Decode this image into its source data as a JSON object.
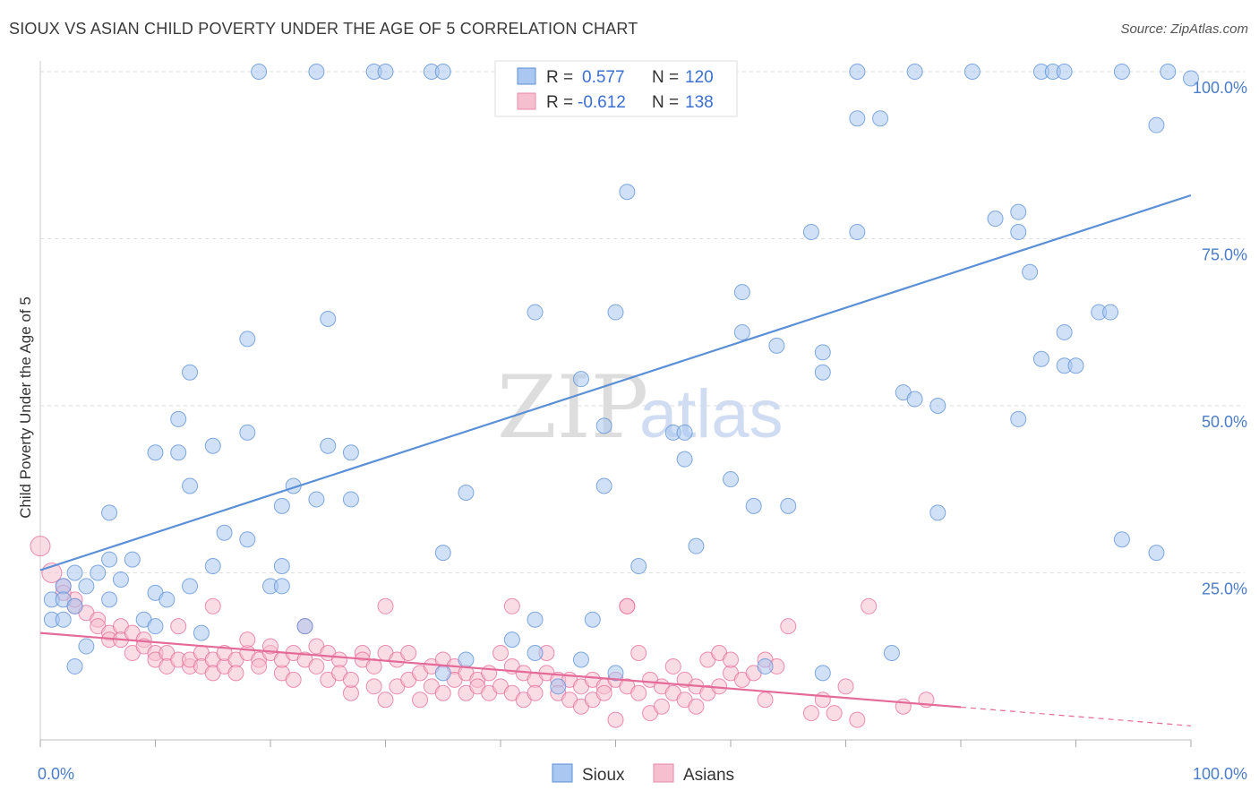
{
  "title": "SIOUX VS ASIAN CHILD POVERTY UNDER THE AGE OF 5 CORRELATION CHART",
  "source": "Source: ZipAtlas.com",
  "watermark": {
    "zip": "ZIP",
    "atlas": "atlas"
  },
  "legend": {
    "r_label": "R =",
    "n_label": "N =",
    "entries": [
      {
        "r": "0.577",
        "n": "120",
        "fill": "#a9c7f0",
        "stroke": "#5b8fd6"
      },
      {
        "r": "-0.612",
        "n": "138",
        "fill": "#f6bfd0",
        "stroke": "#e68aa8"
      }
    ]
  },
  "bottom_legend": [
    "Sioux",
    "Asians"
  ],
  "chart_data": {
    "type": "scatter",
    "xlabel": "",
    "ylabel": "Child Poverty Under the Age of 5",
    "xlim": [
      0,
      100
    ],
    "ylim": [
      0,
      100
    ],
    "x_tick_labels": [
      "0.0%",
      "100.0%"
    ],
    "y_ticks": [
      25,
      50,
      75,
      100
    ],
    "y_tick_labels": [
      "25.0%",
      "50.0%",
      "75.0%",
      "100.0%"
    ],
    "series": [
      {
        "name": "Sioux",
        "color": "#5b8fd6",
        "fill": "#a9c7f0",
        "trend": {
          "x": [
            0,
            100
          ],
          "y": [
            25.4,
            81.5
          ]
        },
        "points": [
          [
            19,
            100
          ],
          [
            24,
            100
          ],
          [
            29,
            100
          ],
          [
            30,
            100
          ],
          [
            34,
            100
          ],
          [
            35,
            100
          ],
          [
            71,
            100
          ],
          [
            76,
            100
          ],
          [
            81,
            100
          ],
          [
            87,
            100
          ],
          [
            88,
            100
          ],
          [
            89,
            100
          ],
          [
            94,
            100
          ],
          [
            98,
            100
          ],
          [
            100,
            99
          ],
          [
            71,
            93
          ],
          [
            73,
            93
          ],
          [
            97,
            92
          ],
          [
            51,
            82
          ],
          [
            83,
            78
          ],
          [
            85,
            79
          ],
          [
            67,
            76
          ],
          [
            71,
            76
          ],
          [
            85,
            76
          ],
          [
            86,
            70
          ],
          [
            61,
            67
          ],
          [
            25,
            63
          ],
          [
            43,
            64
          ],
          [
            50,
            64
          ],
          [
            92,
            64
          ],
          [
            93,
            64
          ],
          [
            18,
            60
          ],
          [
            61,
            61
          ],
          [
            64,
            59
          ],
          [
            68,
            58
          ],
          [
            89,
            61
          ],
          [
            87,
            57
          ],
          [
            89,
            56
          ],
          [
            90,
            56
          ],
          [
            13,
            55
          ],
          [
            47,
            54
          ],
          [
            68,
            55
          ],
          [
            75,
            52
          ],
          [
            76,
            51
          ],
          [
            78,
            50
          ],
          [
            85,
            48
          ],
          [
            12,
            48
          ],
          [
            18,
            46
          ],
          [
            49,
            47
          ],
          [
            55,
            46
          ],
          [
            56,
            46
          ],
          [
            15,
            44
          ],
          [
            10,
            43
          ],
          [
            12,
            43
          ],
          [
            25,
            44
          ],
          [
            27,
            43
          ],
          [
            56,
            42
          ],
          [
            13,
            38
          ],
          [
            22,
            38
          ],
          [
            37,
            37
          ],
          [
            49,
            38
          ],
          [
            60,
            39
          ],
          [
            6,
            34
          ],
          [
            21,
            35
          ],
          [
            24,
            36
          ],
          [
            27,
            36
          ],
          [
            62,
            35
          ],
          [
            65,
            35
          ],
          [
            78,
            34
          ],
          [
            16,
            31
          ],
          [
            18,
            30
          ],
          [
            35,
            28
          ],
          [
            57,
            29
          ],
          [
            94,
            30
          ],
          [
            97,
            28
          ],
          [
            6,
            27
          ],
          [
            8,
            27
          ],
          [
            3,
            25
          ],
          [
            5,
            25
          ],
          [
            15,
            26
          ],
          [
            21,
            26
          ],
          [
            52,
            26
          ],
          [
            20,
            23
          ],
          [
            21,
            23
          ],
          [
            2,
            23
          ],
          [
            4,
            23
          ],
          [
            7,
            24
          ],
          [
            10,
            22
          ],
          [
            13,
            23
          ],
          [
            11,
            21
          ],
          [
            1,
            21
          ],
          [
            2,
            21
          ],
          [
            6,
            21
          ],
          [
            3,
            20
          ],
          [
            1,
            18
          ],
          [
            2,
            18
          ],
          [
            9,
            18
          ],
          [
            10,
            17
          ],
          [
            14,
            16
          ],
          [
            23,
            17
          ],
          [
            41,
            15
          ],
          [
            43,
            18
          ],
          [
            48,
            18
          ],
          [
            4,
            14
          ],
          [
            43,
            13
          ],
          [
            50,
            10
          ],
          [
            35,
            10
          ],
          [
            3,
            11
          ],
          [
            47,
            12
          ],
          [
            37,
            12
          ],
          [
            45,
            8
          ],
          [
            63,
            11
          ],
          [
            74,
            13
          ],
          [
            68,
            10
          ]
        ]
      },
      {
        "name": "Asians",
        "color": "#e46b98",
        "fill": "#f6bfd0",
        "trend": {
          "x": [
            0,
            80
          ],
          "y": [
            16.0,
            4.9
          ]
        },
        "trend_dashed": {
          "x": [
            80,
            100
          ],
          "y": [
            4.9,
            2.1
          ]
        },
        "points": [
          [
            0,
            29
          ],
          [
            1,
            25
          ],
          [
            2,
            23
          ],
          [
            3,
            20
          ],
          [
            3,
            21
          ],
          [
            4,
            19
          ],
          [
            5,
            18
          ],
          [
            5,
            17
          ],
          [
            6,
            16
          ],
          [
            6,
            15
          ],
          [
            7,
            17
          ],
          [
            7,
            15
          ],
          [
            8,
            16
          ],
          [
            8,
            13
          ],
          [
            9,
            15
          ],
          [
            9,
            14
          ],
          [
            10,
            13
          ],
          [
            10,
            12
          ],
          [
            11,
            13
          ],
          [
            11,
            11
          ],
          [
            12,
            12
          ],
          [
            12,
            17
          ],
          [
            13,
            11
          ],
          [
            13,
            12
          ],
          [
            14,
            13
          ],
          [
            14,
            11
          ],
          [
            15,
            12
          ],
          [
            15,
            10
          ],
          [
            16,
            11
          ],
          [
            16,
            13
          ],
          [
            17,
            12
          ],
          [
            17,
            10
          ],
          [
            18,
            13
          ],
          [
            18,
            15
          ],
          [
            19,
            12
          ],
          [
            19,
            11
          ],
          [
            20,
            13
          ],
          [
            20,
            14
          ],
          [
            21,
            10
          ],
          [
            21,
            12
          ],
          [
            22,
            13
          ],
          [
            22,
            9
          ],
          [
            23,
            12
          ],
          [
            23,
            17
          ],
          [
            24,
            14
          ],
          [
            24,
            11
          ],
          [
            25,
            13
          ],
          [
            25,
            9
          ],
          [
            26,
            12
          ],
          [
            26,
            10
          ],
          [
            27,
            7
          ],
          [
            27,
            9
          ],
          [
            28,
            13
          ],
          [
            28,
            12
          ],
          [
            29,
            11
          ],
          [
            29,
            8
          ],
          [
            30,
            13
          ],
          [
            30,
            6
          ],
          [
            31,
            8
          ],
          [
            31,
            12
          ],
          [
            32,
            13
          ],
          [
            32,
            9
          ],
          [
            33,
            6
          ],
          [
            33,
            10
          ],
          [
            34,
            8
          ],
          [
            34,
            11
          ],
          [
            35,
            12
          ],
          [
            35,
            7
          ],
          [
            36,
            11
          ],
          [
            36,
            9
          ],
          [
            37,
            10
          ],
          [
            37,
            7
          ],
          [
            38,
            9
          ],
          [
            38,
            8
          ],
          [
            39,
            10
          ],
          [
            39,
            7
          ],
          [
            40,
            8
          ],
          [
            40,
            13
          ],
          [
            41,
            7
          ],
          [
            41,
            11
          ],
          [
            42,
            10
          ],
          [
            42,
            6
          ],
          [
            43,
            9
          ],
          [
            43,
            7
          ],
          [
            44,
            13
          ],
          [
            44,
            10
          ],
          [
            45,
            9
          ],
          [
            45,
            7
          ],
          [
            46,
            6
          ],
          [
            46,
            9
          ],
          [
            47,
            8
          ],
          [
            47,
            5
          ],
          [
            48,
            9
          ],
          [
            48,
            6
          ],
          [
            49,
            8
          ],
          [
            49,
            7
          ],
          [
            50,
            3
          ],
          [
            50,
            9
          ],
          [
            51,
            8
          ],
          [
            51,
            20
          ],
          [
            52,
            7
          ],
          [
            52,
            13
          ],
          [
            53,
            9
          ],
          [
            53,
            4
          ],
          [
            54,
            8
          ],
          [
            54,
            5
          ],
          [
            55,
            7
          ],
          [
            55,
            11
          ],
          [
            56,
            6
          ],
          [
            56,
            9
          ],
          [
            57,
            8
          ],
          [
            57,
            5
          ],
          [
            58,
            7
          ],
          [
            58,
            12
          ],
          [
            59,
            13
          ],
          [
            59,
            8
          ],
          [
            60,
            10
          ],
          [
            60,
            12
          ],
          [
            61,
            9
          ],
          [
            62,
            10
          ],
          [
            63,
            6
          ],
          [
            63,
            12
          ],
          [
            64,
            11
          ],
          [
            65,
            17
          ],
          [
            67,
            4
          ],
          [
            68,
            6
          ],
          [
            69,
            4
          ],
          [
            70,
            8
          ],
          [
            71,
            3
          ],
          [
            72,
            20
          ],
          [
            75,
            5
          ],
          [
            77,
            6
          ],
          [
            15,
            20
          ],
          [
            30,
            20
          ],
          [
            41,
            20
          ],
          [
            51,
            20
          ],
          [
            2,
            22
          ]
        ]
      }
    ]
  }
}
